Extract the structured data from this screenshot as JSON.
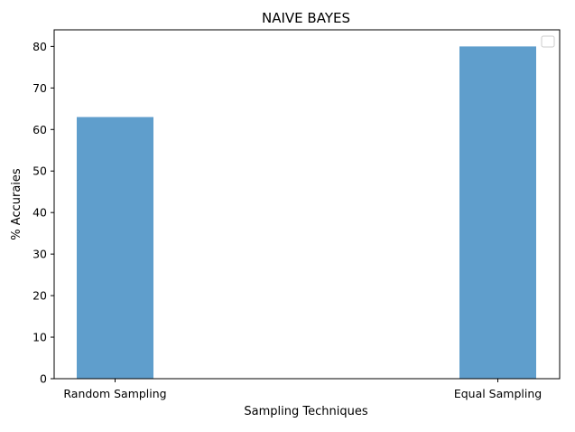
{
  "chart_data": {
    "type": "bar",
    "title": "NAIVE BAYES",
    "xlabel": "Sampling Techniques",
    "ylabel": "% Accuraies",
    "categories": [
      "Random Sampling",
      "Equal Sampling"
    ],
    "values": [
      63,
      80
    ],
    "ylim": [
      0,
      84
    ],
    "yticks": [
      0,
      10,
      20,
      30,
      40,
      50,
      60,
      70,
      80
    ],
    "grid": false,
    "legend": "top-right",
    "bar_color": "#5f9ecc"
  }
}
